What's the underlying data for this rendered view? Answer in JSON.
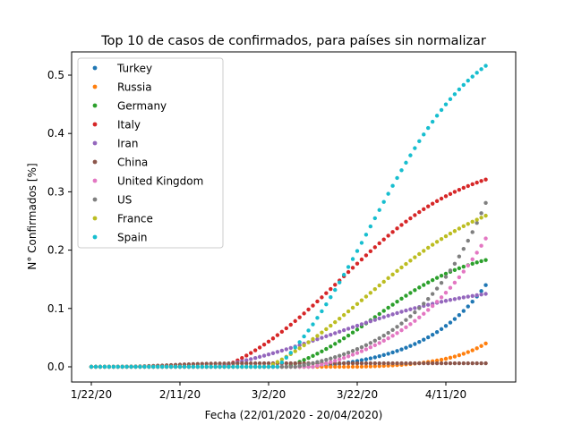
{
  "chart_data": {
    "type": "scatter",
    "title": "Top 10 de casos de confirmados, para países sin normalizar",
    "xlabel": "Fecha (22/01/2020 - 20/04/2020)",
    "ylabel": "N° Confirmados [%]",
    "x_start_date": "2020-01-22",
    "x_end_date": "2020-04-20",
    "x_ticks": [
      "1/22/20",
      "2/11/20",
      "3/2/20",
      "3/22/20",
      "4/11/20"
    ],
    "y_ticks": [
      "0.0",
      "0.1",
      "0.2",
      "0.3",
      "0.4",
      "0.5"
    ],
    "y_range": [
      -0.026,
      0.543
    ],
    "legend_position": "top-left",
    "grid": false,
    "series": [
      {
        "name": "Turkey",
        "color": "#1f77b4",
        "final": 0.14,
        "start_day": 50,
        "k": 0.07,
        "shape": "exp"
      },
      {
        "name": "Russia",
        "color": "#ff7f0e",
        "final": 0.04,
        "start_day": 60,
        "k": 0.11,
        "shape": "exp"
      },
      {
        "name": "Germany",
        "color": "#2ca02c",
        "final": 0.183,
        "start_day": 44,
        "k": 0.09,
        "shape": "sat"
      },
      {
        "name": "Italy",
        "color": "#d62728",
        "final": 0.321,
        "start_day": 30,
        "k": 0.07,
        "shape": "sat"
      },
      {
        "name": "Iran",
        "color": "#9467bd",
        "final": 0.125,
        "start_day": 28,
        "k": 0.06,
        "shape": "sat"
      },
      {
        "name": "China",
        "color": "#8c564b",
        "final": 0.006,
        "start_day": 0,
        "k": 0.1,
        "shape": "china"
      },
      {
        "name": "United Kingdom",
        "color": "#e377c2",
        "final": 0.22,
        "start_day": 50,
        "k": 0.05,
        "shape": "exp"
      },
      {
        "name": "US",
        "color": "#7f7f7f",
        "final": 0.281,
        "start_day": 46,
        "k": 0.06,
        "shape": "exp"
      },
      {
        "name": "France",
        "color": "#bcbd22",
        "final": 0.259,
        "start_day": 40,
        "k": 0.065,
        "shape": "sat"
      },
      {
        "name": "Spain",
        "color": "#17becf",
        "final": 0.516,
        "start_day": 42,
        "k": 0.08,
        "shape": "sat"
      }
    ]
  }
}
